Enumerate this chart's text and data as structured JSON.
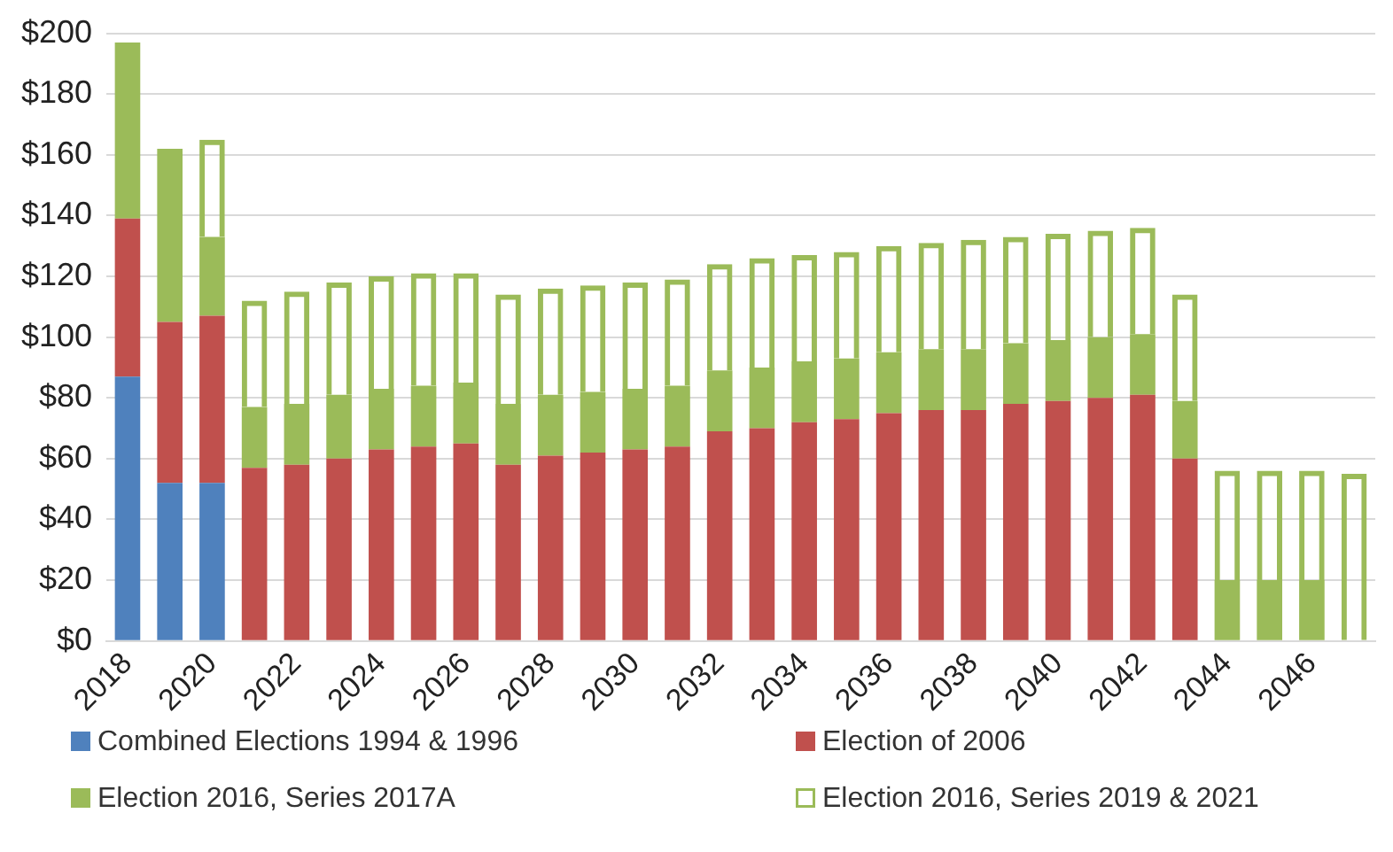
{
  "chart_data": {
    "type": "bar",
    "stacked": true,
    "grid": "y",
    "legend": "bottom",
    "categories": [
      "2018",
      null,
      "2020",
      null,
      "2022",
      null,
      "2024",
      null,
      "2026",
      null,
      "2028",
      null,
      "2030",
      null,
      "2032",
      null,
      "2034",
      null,
      "2036",
      null,
      "2038",
      null,
      "2040",
      null,
      "2042",
      null,
      "2044",
      null,
      "2046",
      null
    ],
    "ylim": [
      0,
      200
    ],
    "yticks": [
      {
        "value": 0,
        "label": "$0"
      },
      {
        "value": 20,
        "label": "$20"
      },
      {
        "value": 40,
        "label": "$40"
      },
      {
        "value": 60,
        "label": "$60"
      },
      {
        "value": 80,
        "label": "$80"
      },
      {
        "value": 100,
        "label": "$100"
      },
      {
        "value": 120,
        "label": "$120"
      },
      {
        "value": 140,
        "label": "$140"
      },
      {
        "value": 160,
        "label": "$160"
      },
      {
        "value": 180,
        "label": "$180"
      },
      {
        "value": 200,
        "label": "$200"
      }
    ],
    "series": [
      {
        "name": "Combined Elections 1994 & 1996",
        "color": "#4f81bd",
        "values": [
          87,
          52,
          52,
          null,
          null,
          null,
          null,
          null,
          null,
          null,
          null,
          null,
          null,
          null,
          null,
          null,
          null,
          null,
          null,
          null,
          null,
          null,
          null,
          null,
          null,
          null,
          null,
          null,
          null,
          null
        ]
      },
      {
        "name": "Election of 2006",
        "color": "#c0504d",
        "values": [
          52,
          53,
          55,
          57,
          58,
          60,
          63,
          64,
          65,
          58,
          61,
          62,
          63,
          64,
          69,
          70,
          72,
          73,
          75,
          76,
          76,
          78,
          79,
          80,
          81,
          60,
          null,
          null,
          null,
          null
        ]
      },
      {
        "name": "Election 2016, Series 2017A",
        "color": "#9bbb59",
        "values": [
          58,
          57,
          26,
          20,
          20,
          21,
          20,
          20,
          20,
          20,
          20,
          20,
          20,
          20,
          20,
          20,
          20,
          20,
          20,
          20,
          20,
          20,
          20,
          20,
          20,
          19,
          20,
          20,
          20,
          null
        ]
      },
      {
        "name": "Election 2016, Series 2019 & 2021",
        "color": "#9bbb59",
        "values": [
          null,
          null,
          32,
          35,
          37,
          37,
          37,
          37,
          36,
          36,
          35,
          35,
          35,
          35,
          35,
          36,
          35,
          35,
          35,
          35,
          36,
          35,
          35,
          35,
          35,
          35,
          36,
          36,
          36,
          55
        ]
      }
    ]
  }
}
